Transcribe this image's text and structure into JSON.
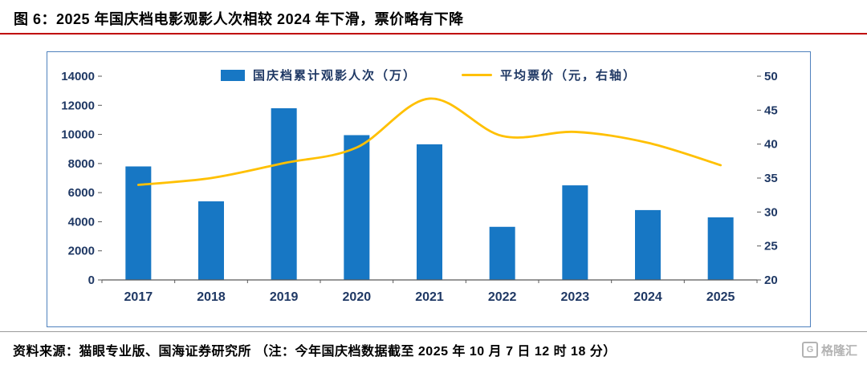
{
  "header": {
    "title": "图 6：2025 年国庆档电影观影人次相较 2024 年下滑，票价略有下降"
  },
  "footer": {
    "source": "资料来源：猫眼专业版、国海证券研究所 （注：今年国庆档数据截至 2025 年 10 月 7 日 12 时 18 分）",
    "watermark": "格隆汇",
    "watermark_icon": "G"
  },
  "colors": {
    "bar": "#1777c4",
    "line": "#ffc000",
    "axis_text": "#1f3864",
    "title_underline": "#c00000",
    "chart_border": "#4f81bd"
  },
  "chart_data": {
    "type": "bar",
    "title": "2025 年国庆档电影观影人次相较 2024 年下滑，票价略有下降",
    "categories": [
      "2017",
      "2018",
      "2019",
      "2020",
      "2021",
      "2022",
      "2023",
      "2024",
      "2025"
    ],
    "series": [
      {
        "name": "国庆档累计观影人次（万）",
        "type": "bar",
        "axis": "left",
        "values": [
          7800,
          5400,
          11800,
          9950,
          9320,
          3650,
          6500,
          4800,
          4300
        ]
      },
      {
        "name": "平均票价（元，右轴）",
        "type": "line",
        "axis": "right",
        "values": [
          34,
          35,
          37.2,
          39.5,
          46.7,
          41.2,
          41.8,
          40.2,
          36.9
        ]
      }
    ],
    "left_axis": {
      "min": 0,
      "max": 14000,
      "step": 2000,
      "ticks": [
        "0",
        "2000",
        "4000",
        "6000",
        "8000",
        "10000",
        "12000",
        "14000"
      ]
    },
    "right_axis": {
      "min": 20,
      "max": 50,
      "step": 5,
      "ticks": [
        "20",
        "25",
        "30",
        "35",
        "40",
        "45",
        "50"
      ]
    },
    "legend_position": "top",
    "grid": false
  }
}
